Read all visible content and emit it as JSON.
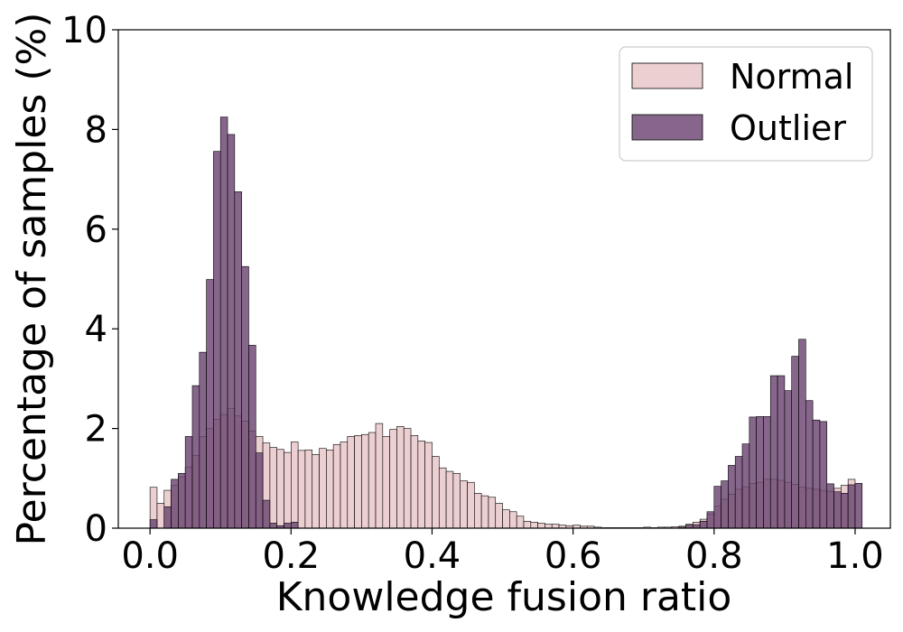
{
  "chart_data": {
    "type": "histogram",
    "xlabel": "Knowledge fusion ratio",
    "ylabel": "Percentage of samples (%)",
    "xlim": [
      -0.045,
      1.05
    ],
    "ylim": [
      0,
      10
    ],
    "xticks": [
      "0.0",
      "0.2",
      "0.4",
      "0.6",
      "0.8",
      "1.0"
    ],
    "yticks": [
      "0",
      "2",
      "4",
      "6",
      "8",
      "10"
    ],
    "bin_width": 0.01,
    "legend_position": "top-right",
    "series": [
      {
        "name": "Normal",
        "color": "#e9c7c9",
        "bins": [
          [
            0.0,
            0.82
          ],
          [
            0.01,
            0.5
          ],
          [
            0.02,
            0.76
          ],
          [
            0.03,
            0.86
          ],
          [
            0.04,
            1.03
          ],
          [
            0.05,
            1.22
          ],
          [
            0.06,
            1.46
          ],
          [
            0.07,
            1.84
          ],
          [
            0.08,
            2.0
          ],
          [
            0.09,
            2.18
          ],
          [
            0.1,
            2.28
          ],
          [
            0.11,
            2.4
          ],
          [
            0.12,
            2.25
          ],
          [
            0.13,
            2.15
          ],
          [
            0.14,
            1.95
          ],
          [
            0.15,
            1.84
          ],
          [
            0.16,
            1.71
          ],
          [
            0.17,
            1.62
          ],
          [
            0.18,
            1.58
          ],
          [
            0.19,
            1.52
          ],
          [
            0.2,
            1.73
          ],
          [
            0.21,
            1.56
          ],
          [
            0.22,
            1.57
          ],
          [
            0.23,
            1.48
          ],
          [
            0.24,
            1.6
          ],
          [
            0.25,
            1.57
          ],
          [
            0.26,
            1.68
          ],
          [
            0.27,
            1.73
          ],
          [
            0.28,
            1.84
          ],
          [
            0.29,
            1.86
          ],
          [
            0.3,
            1.88
          ],
          [
            0.31,
            1.92
          ],
          [
            0.32,
            2.1
          ],
          [
            0.33,
            1.84
          ],
          [
            0.34,
            1.98
          ],
          [
            0.35,
            2.04
          ],
          [
            0.36,
            2.0
          ],
          [
            0.37,
            1.86
          ],
          [
            0.38,
            1.75
          ],
          [
            0.39,
            1.72
          ],
          [
            0.4,
            1.44
          ],
          [
            0.41,
            1.21
          ],
          [
            0.42,
            1.14
          ],
          [
            0.43,
            1.1
          ],
          [
            0.44,
            0.95
          ],
          [
            0.45,
            0.92
          ],
          [
            0.46,
            0.7
          ],
          [
            0.47,
            0.65
          ],
          [
            0.48,
            0.62
          ],
          [
            0.49,
            0.5
          ],
          [
            0.5,
            0.37
          ],
          [
            0.51,
            0.33
          ],
          [
            0.52,
            0.24
          ],
          [
            0.53,
            0.14
          ],
          [
            0.54,
            0.12
          ],
          [
            0.55,
            0.1
          ],
          [
            0.56,
            0.08
          ],
          [
            0.57,
            0.08
          ],
          [
            0.58,
            0.06
          ],
          [
            0.59,
            0.05
          ],
          [
            0.6,
            0.06
          ],
          [
            0.61,
            0.04
          ],
          [
            0.62,
            0.04
          ],
          [
            0.63,
            0.02
          ],
          [
            0.64,
            0.01
          ],
          [
            0.65,
            0.01
          ],
          [
            0.66,
            0.01
          ],
          [
            0.67,
            0.01
          ],
          [
            0.68,
            0.01
          ],
          [
            0.69,
            0.01
          ],
          [
            0.7,
            0.02
          ],
          [
            0.71,
            0.01
          ],
          [
            0.72,
            0.02
          ],
          [
            0.73,
            0.02
          ],
          [
            0.74,
            0.03
          ],
          [
            0.75,
            0.04
          ],
          [
            0.76,
            0.08
          ],
          [
            0.77,
            0.12
          ],
          [
            0.78,
            0.18
          ],
          [
            0.79,
            0.28
          ],
          [
            0.8,
            0.44
          ],
          [
            0.81,
            0.58
          ],
          [
            0.82,
            0.68
          ],
          [
            0.83,
            0.78
          ],
          [
            0.84,
            0.82
          ],
          [
            0.85,
            0.9
          ],
          [
            0.86,
            0.92
          ],
          [
            0.87,
            0.98
          ],
          [
            0.88,
            0.98
          ],
          [
            0.89,
            0.96
          ],
          [
            0.9,
            0.92
          ],
          [
            0.91,
            0.88
          ],
          [
            0.92,
            0.82
          ],
          [
            0.93,
            0.8
          ],
          [
            0.94,
            0.78
          ],
          [
            0.95,
            0.76
          ],
          [
            0.96,
            0.74
          ],
          [
            0.97,
            0.8
          ],
          [
            0.98,
            0.86
          ],
          [
            0.99,
            0.98
          ]
        ]
      },
      {
        "name": "Outlier",
        "color": "#6b4671",
        "bins": [
          [
            0.0,
            0.17
          ],
          [
            0.02,
            0.43
          ],
          [
            0.03,
            0.98
          ],
          [
            0.04,
            1.1
          ],
          [
            0.05,
            1.84
          ],
          [
            0.06,
            2.86
          ],
          [
            0.07,
            3.53
          ],
          [
            0.08,
            4.99
          ],
          [
            0.09,
            7.56
          ],
          [
            0.1,
            8.25
          ],
          [
            0.11,
            7.9
          ],
          [
            0.12,
            6.75
          ],
          [
            0.13,
            5.25
          ],
          [
            0.14,
            3.67
          ],
          [
            0.15,
            1.51
          ],
          [
            0.16,
            0.56
          ],
          [
            0.17,
            0.1
          ],
          [
            0.18,
            0.05
          ],
          [
            0.19,
            0.1
          ],
          [
            0.2,
            0.12
          ],
          [
            0.75,
            0.02
          ],
          [
            0.76,
            0.06
          ],
          [
            0.77,
            0.07
          ],
          [
            0.78,
            0.14
          ],
          [
            0.79,
            0.33
          ],
          [
            0.8,
            0.84
          ],
          [
            0.81,
            0.95
          ],
          [
            0.82,
            1.26
          ],
          [
            0.83,
            1.44
          ],
          [
            0.84,
            1.69
          ],
          [
            0.85,
            2.23
          ],
          [
            0.86,
            2.24
          ],
          [
            0.87,
            2.24
          ],
          [
            0.88,
            3.06
          ],
          [
            0.89,
            3.06
          ],
          [
            0.9,
            2.76
          ],
          [
            0.91,
            3.45
          ],
          [
            0.92,
            3.79
          ],
          [
            0.93,
            2.56
          ],
          [
            0.94,
            2.17
          ],
          [
            0.95,
            2.14
          ],
          [
            0.96,
            0.89
          ],
          [
            0.97,
            0.73
          ],
          [
            0.98,
            0.7
          ],
          [
            0.99,
            0.87
          ],
          [
            1.0,
            0.9
          ]
        ]
      }
    ]
  }
}
